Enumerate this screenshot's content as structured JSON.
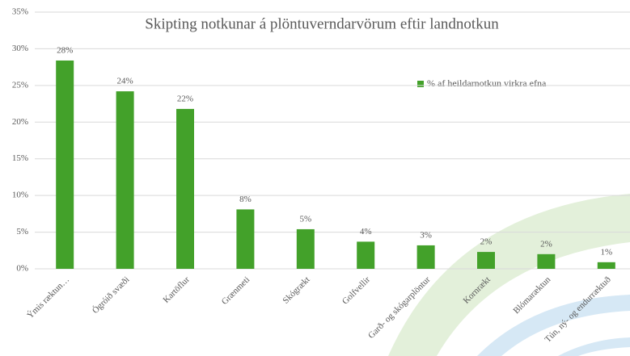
{
  "chart_data": {
    "type": "bar",
    "title": "Skipting notkunar á plöntuverndarvörum eftir landnotkun",
    "categories": [
      "Ýmis ræktun…",
      "Ógróið svæði",
      "Kartöflur",
      "Grænmeti",
      "Skógrækt",
      "Golfvellir",
      "Garð- og skógarplöntur",
      "Kornrækt",
      "Blómaræktun",
      "Tún, ný- og endurræktuð"
    ],
    "series": [
      {
        "name": "% af heildarnotkun virkra efna",
        "color": "#43a12a",
        "values": [
          28.4,
          24.2,
          21.8,
          8.1,
          5.4,
          3.7,
          3.2,
          2.3,
          2.0,
          0.9
        ],
        "value_labels": [
          "28%",
          "24%",
          "22%",
          "8%",
          "5%",
          "4%",
          "3%",
          "2%",
          "2%",
          "1%"
        ]
      }
    ],
    "ylim": [
      0,
      35
    ],
    "yticks": [
      {
        "value": 0,
        "label": "0%"
      },
      {
        "value": 5,
        "label": "5%"
      },
      {
        "value": 10,
        "label": "10%"
      },
      {
        "value": 15,
        "label": "15%"
      },
      {
        "value": 20,
        "label": "20%"
      },
      {
        "value": 25,
        "label": "25%"
      },
      {
        "value": 30,
        "label": "30%"
      },
      {
        "value": 35,
        "label": "35%"
      }
    ],
    "grid": true,
    "legend": "right"
  }
}
